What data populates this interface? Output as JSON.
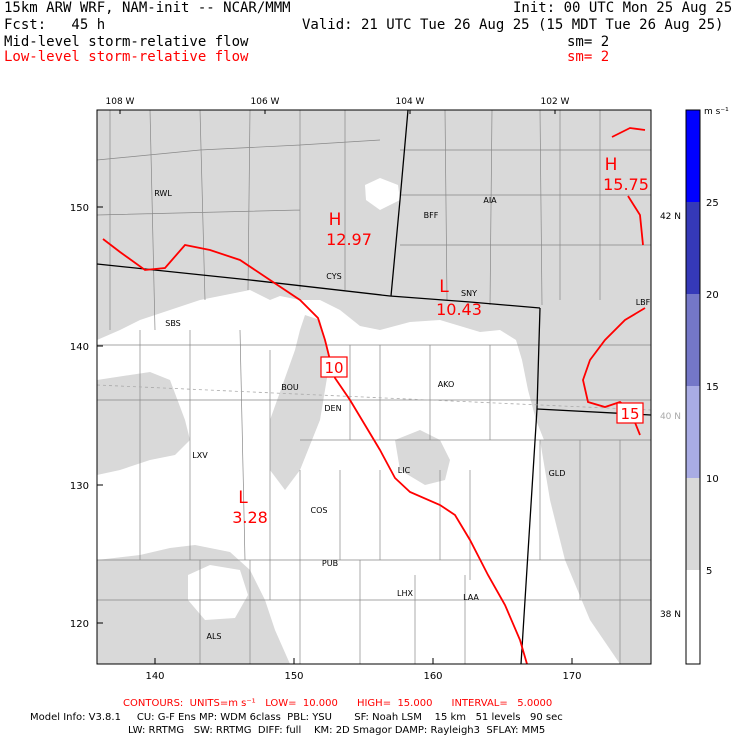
{
  "header": {
    "model_title": "15km ARW WRF, NAM-init -- NCAR/MMM",
    "init": "Init: 00 UTC Mon 25 Aug 25",
    "fcst": "Fcst:   45 h",
    "valid": "Valid: 21 UTC Tue 26 Aug 25 (15 MDT Tue 26 Aug 25)",
    "field1_label": "Mid-level storm-relative flow",
    "field1_sm": "sm= 2",
    "field2_label": "Low-level storm-relative flow",
    "field2_sm": "sm= 2"
  },
  "colors": {
    "shade_light": "#d9d9d9",
    "shade_mid": "#9fa3dc",
    "contour": "#ff0000",
    "text_red": "#ff0000"
  },
  "top_axis": [
    "108 W",
    "106 W",
    "104 W",
    "102 W"
  ],
  "left_axis": [
    "150",
    "140",
    "130",
    "120"
  ],
  "bottom_axis": [
    "140",
    "150",
    "160",
    "170"
  ],
  "right_axis": [
    "42 N",
    "40 N",
    "38 N"
  ],
  "colorbar": {
    "unit": "m s⁻¹",
    "levels": [
      "25",
      "20",
      "15",
      "10",
      "5"
    ],
    "colors": [
      "#0000ff",
      "#3539b8",
      "#7477c8",
      "#a9ace4",
      "#d9d9d9",
      "#ffffff"
    ]
  },
  "stations": [
    "RWL",
    "BFF",
    "AIA",
    "CYS",
    "SNY",
    "SBS",
    "LBF",
    "BOU",
    "AKO",
    "DEN",
    "LXV",
    "LIC",
    "GLD",
    "COS",
    "PUB",
    "LHX",
    "LAA",
    "ALS"
  ],
  "extrema": [
    {
      "symbol": "H",
      "value": "12.97"
    },
    {
      "symbol": "H",
      "value": "15.75"
    },
    {
      "symbol": "L",
      "value": "10.43"
    },
    {
      "symbol": "L",
      "value": "3.28"
    }
  ],
  "contour_labels": [
    "10",
    "15"
  ],
  "footer": {
    "contours": "CONTOURS:  UNITS=m s⁻¹   LOW=  10.000      HIGH=  15.000      INTERVAL=   5.0000",
    "model_info_1": "Model Info: V3.8.1     CU: G-F Ens MP: WDM 6class  PBL: YSU       SF: Noah LSM    15 km   51 levels   90 sec",
    "model_info_2": "LW: RRTMG   SW: RRTMG  DIFF: full    KM: 2D Smagor DAMP: Rayleigh3  SFLAY: MM5"
  }
}
